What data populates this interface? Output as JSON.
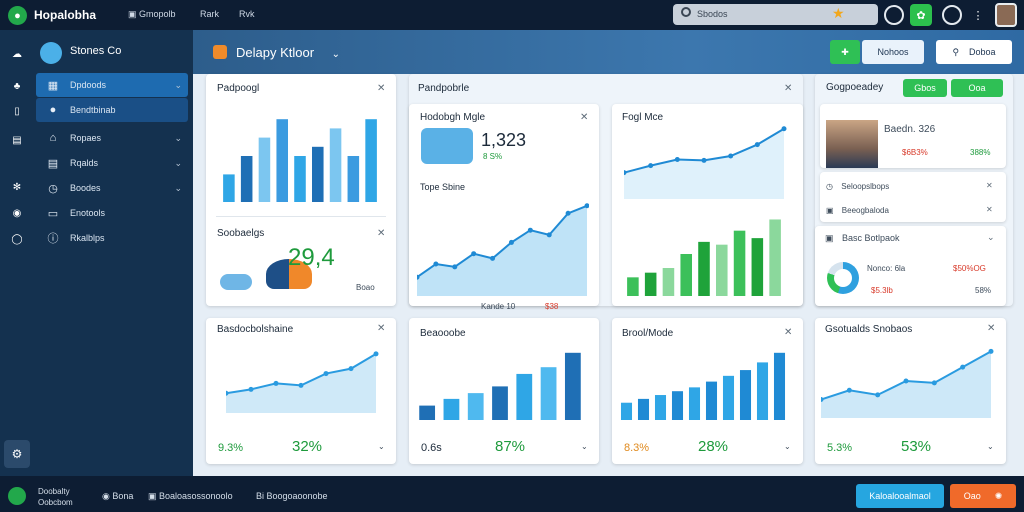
{
  "app": {
    "brand": "Hopalobha"
  },
  "topbar": {
    "nav": [
      "Gmopolb",
      "Rark",
      "Rvk"
    ],
    "search_placeholder": "Sbodos"
  },
  "sidebar": {
    "title": "Stones Co",
    "items": [
      {
        "label": "Dpdoods"
      },
      {
        "label": "Bendtbinab"
      },
      {
        "label": "Ropaes"
      },
      {
        "label": "Rqalds"
      },
      {
        "label": "Boodes"
      },
      {
        "label": "Enotools"
      },
      {
        "label": "Rkalblps"
      }
    ]
  },
  "header": {
    "title": "Delapy Ktloor",
    "btn_primary": "Nohoos",
    "btn_secondary": "Doboa"
  },
  "panels": {
    "p1": {
      "title": "Padpoogl"
    },
    "p2": {
      "title": "Soobaelgs",
      "value": "29,4",
      "sub": "Boao"
    },
    "p3": {
      "title": "Pandpobrle"
    },
    "p3a": {
      "title": "Hodobgh Mgle",
      "value": "1,323",
      "sub": "8 S%"
    },
    "p3b": {
      "title": "Tope Sbine",
      "foot": "Kande 10",
      "foot2": "$38"
    },
    "p4": {
      "title": "Fogl Mce"
    },
    "p5": {
      "title": "Gogpoeadey",
      "btn1": "Gbos",
      "btn2": "Ooa"
    },
    "p5a": {
      "name": "Baedn. 326",
      "sub": "$6B3%",
      "pct": "388%"
    },
    "p5b": {
      "row1": "Seloopslbops",
      "row2": "Beeogbaloda"
    },
    "p5c": {
      "title": "Basc Botlpaok",
      "v1": "Nonco: 6la",
      "v2": "$50%OG",
      "v3": "$5.3lb",
      "v4": "58%"
    },
    "p6": {
      "title": "Basdocbolshaine",
      "pct1": "9.3%",
      "pct2": "32%"
    },
    "p7": {
      "title": "Beaooobe",
      "pct1": "0.6s",
      "pct2": "87%"
    },
    "p8": {
      "title": "Brool/Mode",
      "pct1": "8.3%",
      "pct2": "28%"
    },
    "p9": {
      "title": "Gsotualds Snobaos",
      "pct1": "5.3%",
      "pct2": "53%"
    }
  },
  "footer": {
    "status1": "Doobalty",
    "status2": "Oobcbom",
    "item1": "Bona",
    "item2": "Boaloasossonoolo",
    "item3": "Bi Boogoaoonobe",
    "btn1": "Kaloalooalmaol",
    "btn2": "Oao"
  },
  "chart_data": [
    {
      "type": "bar",
      "values": [
        3,
        5,
        7,
        9,
        5,
        6,
        8,
        5,
        9
      ]
    },
    {
      "type": "area",
      "values": [
        20,
        34,
        31,
        45,
        40,
        57,
        70,
        65,
        88,
        96
      ]
    },
    {
      "type": "line",
      "values": [
        30,
        38,
        45,
        44,
        49,
        62,
        80
      ]
    },
    {
      "type": "bar",
      "values": [
        20,
        25,
        30,
        45,
        58,
        55,
        70,
        62,
        82
      ]
    }
  ]
}
